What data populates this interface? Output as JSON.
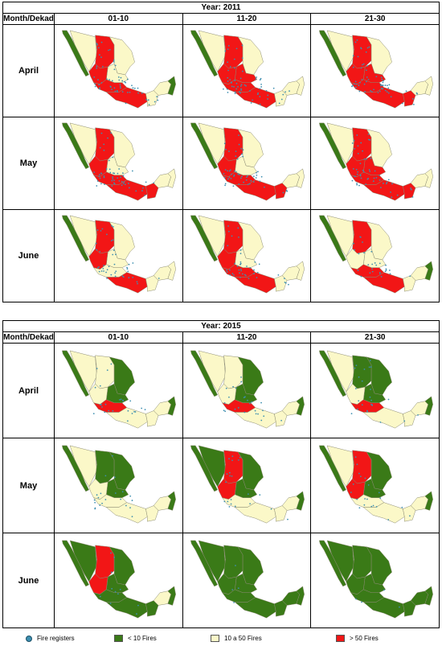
{
  "header_label": "Month/Dekad",
  "dekads": [
    "01-10",
    "11-20",
    "21-30"
  ],
  "colors": {
    "low": "#3a7a17",
    "mid": "#fbf8c8",
    "high": "#f21616",
    "fire": "#3d8fb0",
    "border": "#8a8a72"
  },
  "panels": [
    {
      "year_label": "Year: 2011",
      "rows": [
        {
          "month": "April",
          "cells": [
            {
              "fires": 0.85,
              "classes": {
                "nw": "low",
                "nw2": "mid",
                "n": "high",
                "ne": "mid",
                "c": "mid",
                "cw": "high",
                "cs": "high",
                "s": "high",
                "se": "mid",
                "yuc": "mid",
                "qroo": "low"
              }
            },
            {
              "fires": 0.85,
              "classes": {
                "nw": "low",
                "nw2": "mid",
                "n": "high",
                "ne": "mid",
                "c": "high",
                "cw": "high",
                "cs": "high",
                "s": "high",
                "se": "mid",
                "yuc": "mid",
                "qroo": "mid"
              }
            },
            {
              "fires": 0.85,
              "classes": {
                "nw": "low",
                "nw2": "mid",
                "n": "high",
                "ne": "mid",
                "c": "high",
                "cw": "high",
                "cs": "high",
                "s": "high",
                "se": "high",
                "yuc": "mid",
                "qroo": "mid"
              }
            }
          ]
        },
        {
          "month": "May",
          "cells": [
            {
              "fires": 0.75,
              "classes": {
                "nw": "low",
                "nw2": "mid",
                "n": "high",
                "ne": "mid",
                "c": "mid",
                "cw": "high",
                "cs": "high",
                "s": "high",
                "se": "high",
                "yuc": "mid",
                "qroo": "mid"
              }
            },
            {
              "fires": 0.75,
              "classes": {
                "nw": "low",
                "nw2": "mid",
                "n": "high",
                "ne": "mid",
                "c": "mid",
                "cw": "high",
                "cs": "high",
                "s": "high",
                "se": "high",
                "yuc": "mid",
                "qroo": "mid"
              }
            },
            {
              "fires": 0.75,
              "classes": {
                "nw": "low",
                "nw2": "mid",
                "n": "high",
                "ne": "mid",
                "c": "high",
                "cw": "high",
                "cs": "high",
                "s": "high",
                "se": "high",
                "yuc": "mid",
                "qroo": "mid"
              }
            }
          ]
        },
        {
          "month": "June",
          "cells": [
            {
              "fires": 0.6,
              "classes": {
                "nw": "low",
                "nw2": "mid",
                "n": "high",
                "ne": "mid",
                "c": "mid",
                "cw": "high",
                "cs": "mid",
                "s": "high",
                "se": "mid",
                "yuc": "mid",
                "qroo": "mid"
              }
            },
            {
              "fires": 0.6,
              "classes": {
                "nw": "low",
                "nw2": "mid",
                "n": "high",
                "ne": "mid",
                "c": "mid",
                "cw": "high",
                "cs": "high",
                "s": "high",
                "se": "mid",
                "yuc": "mid",
                "qroo": "mid"
              }
            },
            {
              "fires": 0.4,
              "classes": {
                "nw": "low",
                "nw2": "mid",
                "n": "high",
                "ne": "mid",
                "c": "mid",
                "cw": "mid",
                "cs": "high",
                "s": "high",
                "se": "mid",
                "yuc": "mid",
                "qroo": "low"
              }
            }
          ]
        }
      ]
    },
    {
      "year_label": "Year: 2015",
      "rows": [
        {
          "month": "April",
          "cells": [
            {
              "fires": 0.35,
              "classes": {
                "nw": "low",
                "nw2": "mid",
                "n": "mid",
                "ne": "low",
                "c": "low",
                "cw": "mid",
                "cs": "high",
                "s": "mid",
                "se": "mid",
                "yuc": "mid",
                "qroo": "low"
              }
            },
            {
              "fires": 0.35,
              "classes": {
                "nw": "low",
                "nw2": "mid",
                "n": "mid",
                "ne": "low",
                "c": "low",
                "cw": "mid",
                "cs": "high",
                "s": "mid",
                "se": "mid",
                "yuc": "mid",
                "qroo": "low"
              }
            },
            {
              "fires": 0.35,
              "classes": {
                "nw": "low",
                "nw2": "mid",
                "n": "low",
                "ne": "low",
                "c": "low",
                "cw": "mid",
                "cs": "high",
                "s": "mid",
                "se": "mid",
                "yuc": "mid",
                "qroo": "low"
              }
            }
          ]
        },
        {
          "month": "May",
          "cells": [
            {
              "fires": 0.3,
              "classes": {
                "nw": "low",
                "nw2": "mid",
                "n": "low",
                "ne": "low",
                "c": "low",
                "cw": "mid",
                "cs": "mid",
                "s": "mid",
                "se": "mid",
                "yuc": "mid",
                "qroo": "low"
              }
            },
            {
              "fires": 0.3,
              "classes": {
                "nw": "low",
                "nw2": "low",
                "n": "high",
                "ne": "low",
                "c": "low",
                "cw": "high",
                "cs": "mid",
                "s": "mid",
                "se": "mid",
                "yuc": "mid",
                "qroo": "low"
              }
            },
            {
              "fires": 0.3,
              "classes": {
                "nw": "low",
                "nw2": "mid",
                "n": "high",
                "ne": "low",
                "c": "low",
                "cw": "high",
                "cs": "mid",
                "s": "mid",
                "se": "mid",
                "yuc": "mid",
                "qroo": "low"
              }
            }
          ]
        },
        {
          "month": "June",
          "cells": [
            {
              "fires": 0.15,
              "classes": {
                "nw": "low",
                "nw2": "low",
                "n": "high",
                "ne": "low",
                "c": "low",
                "cw": "high",
                "cs": "low",
                "s": "low",
                "se": "low",
                "yuc": "mid",
                "qroo": "low"
              }
            },
            {
              "fires": 0.05,
              "classes": {
                "nw": "low",
                "nw2": "low",
                "n": "low",
                "ne": "low",
                "c": "low",
                "cw": "low",
                "cs": "low",
                "s": "low",
                "se": "low",
                "yuc": "low",
                "qroo": "low"
              }
            },
            {
              "fires": 0.05,
              "classes": {
                "nw": "low",
                "nw2": "low",
                "n": "low",
                "ne": "low",
                "c": "low",
                "cw": "low",
                "cs": "low",
                "s": "low",
                "se": "low",
                "yuc": "low",
                "qroo": "low"
              }
            }
          ]
        }
      ]
    }
  ],
  "legend": {
    "fire_registers": "Fire registers",
    "low": "< 10 Fires",
    "mid": "10 a 50 Fires",
    "high": "> 50 Fires"
  }
}
